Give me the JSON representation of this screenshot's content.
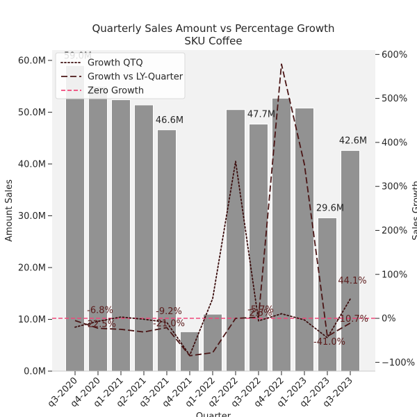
{
  "chart_data": {
    "type": "bar",
    "title": "Quarterly Sales Amount vs Percentage Growth",
    "subtitle": "SKU Coffee",
    "xlabel": "Quarter",
    "ylabel": "Amount Sales",
    "y2label": "Sales Growth",
    "categories": [
      "q3-2020",
      "q4-2020",
      "q1-2021",
      "q2-2021",
      "q3-2021",
      "q4-2021",
      "q1-2022",
      "q2-2022",
      "q3-2022",
      "q4-2022",
      "q1-2023",
      "q2-2023",
      "q3-2023"
    ],
    "bar_series": {
      "name": "Amount Sales",
      "values": [
        59.0,
        55.0,
        52.4,
        51.4,
        46.6,
        7.6,
        11.0,
        50.5,
        47.7,
        52.7,
        50.8,
        29.6,
        42.6
      ],
      "color": "#929292"
    },
    "ylim": [
      0,
      62
    ],
    "yticks": [
      {
        "value": 0,
        "label": "0.0M"
      },
      {
        "value": 10,
        "label": "10.0M"
      },
      {
        "value": 20,
        "label": "20.0M"
      },
      {
        "value": 30,
        "label": "30.0M"
      },
      {
        "value": 40,
        "label": "40.0M"
      },
      {
        "value": 50,
        "label": "50.0M"
      },
      {
        "value": 60,
        "label": "60.0M"
      }
    ],
    "y2lim": [
      -120,
      610
    ],
    "y2ticks": [
      {
        "value": -100,
        "label": "−100%"
      },
      {
        "value": 0,
        "label": "0%"
      },
      {
        "value": 100,
        "label": "100%"
      },
      {
        "value": 200,
        "label": "200%"
      },
      {
        "value": 300,
        "label": "300%"
      },
      {
        "value": 400,
        "label": "400%"
      },
      {
        "value": 500,
        "label": "500%"
      },
      {
        "value": 600,
        "label": "600%"
      }
    ],
    "line_series": [
      {
        "name": "Growth QTQ",
        "style": "dotted",
        "color": "#3b0d0d",
        "values": [
          -20,
          -6.8,
          3,
          -2,
          -9.2,
          -84,
          45,
          357,
          -5.7,
          10.5,
          -3.6,
          -44,
          44.1
        ]
      },
      {
        "name": "Growth vs LY-Quarter",
        "style": "dashed",
        "color": "#4a1515",
        "values": [
          -5,
          -22.5,
          -25,
          -31,
          -21.0,
          -85,
          -78,
          0,
          2.5,
          578,
          350,
          -41.0,
          -10.7
        ]
      }
    ],
    "reference_line": {
      "name": "Zero Growth",
      "value": 0,
      "style": "dashed",
      "color": "#f0487a"
    },
    "bar_labels": [
      {
        "index": 0,
        "text": "59.0M"
      },
      {
        "index": 4,
        "text": "46.6M"
      },
      {
        "index": 8,
        "text": "47.7M"
      },
      {
        "index": 11,
        "text": "29.6M"
      },
      {
        "index": 12,
        "text": "42.6M"
      }
    ],
    "growth_labels": [
      {
        "index": 1,
        "text": "-6.8%",
        "series": "Growth QTQ"
      },
      {
        "index": 1,
        "text": "-22.5%",
        "series": "Growth vs LY-Quarter"
      },
      {
        "index": 4,
        "text": "-9.2%",
        "series": "Growth QTQ"
      },
      {
        "index": 4,
        "text": "-21.0%",
        "series": "Growth vs LY-Quarter"
      },
      {
        "index": 8,
        "text": "2.5%",
        "series": "Growth vs LY-Quarter"
      },
      {
        "index": 8,
        "text": "-5.7%",
        "series": "Growth QTQ"
      },
      {
        "index": 11,
        "text": "-41.0%",
        "series": "Growth vs LY-Quarter"
      },
      {
        "index": 12,
        "text": "44.1%",
        "series": "Growth QTQ"
      },
      {
        "index": 12,
        "text": "-10.7%",
        "series": "Growth vs LY-Quarter"
      }
    ],
    "legend": {
      "placement": "top-left",
      "entries": [
        "Growth QTQ",
        "Growth vs LY-Quarter",
        "Zero Growth"
      ]
    },
    "background": "#f2f2f2",
    "grid": false
  }
}
